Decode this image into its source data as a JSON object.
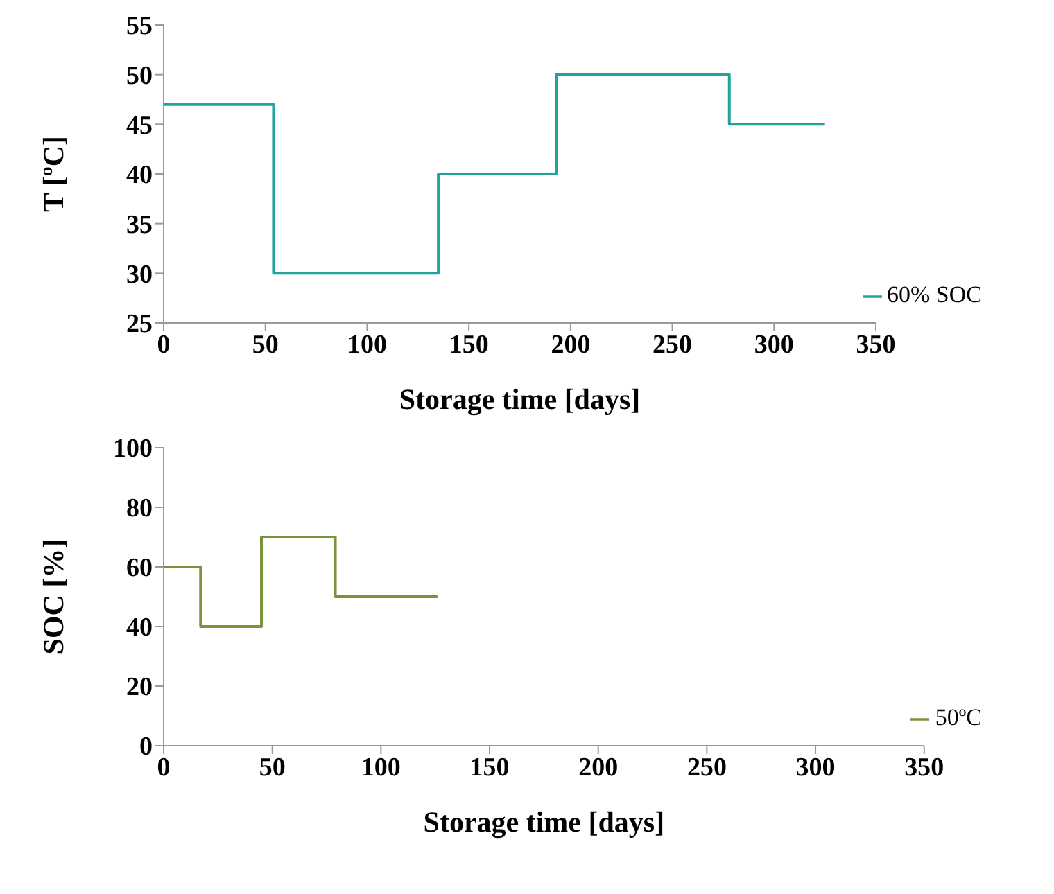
{
  "chart_data": [
    {
      "type": "step",
      "xlabel": "Storage time [days]",
      "ylabel": "T [ºC]",
      "xlim": [
        0,
        350
      ],
      "xticks": [
        0,
        50,
        100,
        150,
        200,
        250,
        300,
        350
      ],
      "ylim": [
        25,
        55
      ],
      "yticks": [
        25,
        30,
        35,
        40,
        45,
        50,
        55
      ],
      "legend": "bottom right",
      "grid": false,
      "series": [
        {
          "name": "60% SOC",
          "color": "#1fa39a",
          "x": [
            0,
            54,
            135,
            193,
            278,
            325
          ],
          "values": [
            47,
            30,
            40,
            50,
            45,
            45
          ]
        }
      ]
    },
    {
      "type": "step",
      "xlabel": "Storage time [days]",
      "ylabel": "SOC [%]",
      "xlim": [
        0,
        350
      ],
      "xticks": [
        0,
        50,
        100,
        150,
        200,
        250,
        300,
        350
      ],
      "ylim": [
        0,
        100
      ],
      "yticks": [
        0,
        20,
        40,
        60,
        80,
        100
      ],
      "legend": "bottom right",
      "grid": false,
      "series": [
        {
          "name": "50ºC",
          "color": "#77933c",
          "x": [
            0,
            17,
            45,
            79,
            126
          ],
          "values": [
            60,
            40,
            70,
            50,
            50
          ]
        }
      ]
    }
  ]
}
